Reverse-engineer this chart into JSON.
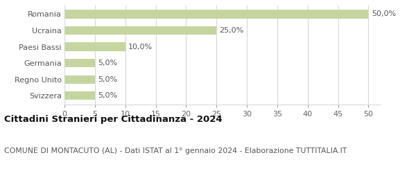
{
  "categories": [
    "Svizzera",
    "Regno Unito",
    "Germania",
    "Paesi Bassi",
    "Ucraina",
    "Romania"
  ],
  "values": [
    5.0,
    5.0,
    5.0,
    10.0,
    25.0,
    50.0
  ],
  "labels": [
    "5,0%",
    "5,0%",
    "5,0%",
    "10,0%",
    "25,0%",
    "50,0%"
  ],
  "bar_color": "#c5d5a0",
  "background_color": "#ffffff",
  "grid_color": "#d8d8d8",
  "title": "Cittadini Stranieri per Cittadinanza - 2024",
  "subtitle": "COMUNE DI MONTACUTO (AL) - Dati ISTAT al 1° gennaio 2024 - Elaborazione TUTTITALIA.IT",
  "title_fontsize": 9.5,
  "subtitle_fontsize": 7.8,
  "tick_label_fontsize": 8,
  "bar_label_fontsize": 8,
  "xlim": [
    0,
    52
  ],
  "xticks": [
    0,
    5,
    10,
    15,
    20,
    25,
    30,
    35,
    40,
    45,
    50
  ]
}
